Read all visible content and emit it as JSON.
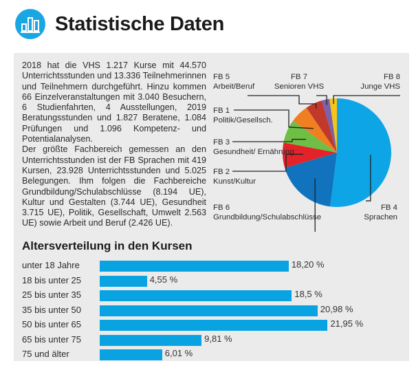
{
  "header": {
    "title": "Statistische Daten",
    "icon": "bar-chart-icon",
    "accent_color": "#1aa6e3"
  },
  "intro": {
    "paragraph1": "2018 hat die VHS 1.217 Kurse mit 44.570 Unterrichtsstunden und 13.336 Teilnehmerinnen und Teilnehmern durchgeführt. Hinzu kommen 66 Einzelveranstaltungen mit 3.040 Besuchern, 6 Studienfahrten, 4 Ausstellungen, 2019 Beratungsstunden und 1.827 Beratene, 1.084 Prüfungen und 1.096 Kompetenz- und Potentialanalysen.",
    "paragraph2": "Der größte Fachbereich gemessen an den Unterrichtsstunden ist der FB Sprachen mit 419 Kursen, 23.928 Unterrichtsstunden und 5.025 Belegungen. Ihm folgen die Fachbereiche Grundbildung/Schulabschlüsse (8.194 UE), Kultur und Gestalten (3.744 UE), Gesundheit 3.715 UE), Politik, Gesellschaft, Umwelt 2.563 UE) sowie Arbeit und Beruf (2.426 UE)."
  },
  "chart_data": [
    {
      "type": "pie",
      "title": "",
      "start": "top",
      "direction": "clockwise",
      "unit": "percent (estimated from slice angles)",
      "slices": [
        {
          "code": "FB 4",
          "name": "Sprachen",
          "value": 52.0,
          "color": "#0ea5e6"
        },
        {
          "code": "FB 6",
          "name": "Grundbildung/Schulabschlüsse",
          "value": 18.5,
          "color": "#1172bd"
        },
        {
          "code": "FB 2",
          "name": "Kunst/Kultur",
          "value": 7.5,
          "color": "#e42229"
        },
        {
          "code": "FB 3",
          "name": "Gesundheit/ Ernährung",
          "value": 7.0,
          "color": "#6fbe45"
        },
        {
          "code": "FB 1",
          "name": "Politik/Gesellsch.",
          "value": 5.5,
          "color": "#f07f22"
        },
        {
          "code": "FB 5",
          "name": "Arbeit/Beruf",
          "value": 5.0,
          "color": "#c0392b"
        },
        {
          "code": "FB 7",
          "name": "Senioren VHS",
          "value": 2.3,
          "color": "#7a62ad"
        },
        {
          "code": "FB 8",
          "name": "Junge VHS",
          "value": 2.2,
          "color": "#f6c518"
        }
      ]
    },
    {
      "type": "bar",
      "orientation": "horizontal",
      "title": "Altersverteilung in den Kursen",
      "xlabel": "",
      "ylabel": "",
      "xlim": [
        0,
        22
      ],
      "color": "#0aa3e2",
      "categories": [
        "unter 18 Jahre",
        "18 bis unter 25",
        "25 bis unter 35",
        "35 bis unter 50",
        "50 bis unter 65",
        "65 bis unter 75",
        "75 und älter"
      ],
      "values": [
        18.2,
        4.55,
        18.5,
        20.98,
        21.95,
        9.81,
        6.01
      ],
      "value_labels": [
        "18,20 %",
        "4,55 %",
        "18,5 %",
        "20,98 %",
        "21,95 %",
        "9,81 %",
        "6,01 %"
      ]
    }
  ]
}
